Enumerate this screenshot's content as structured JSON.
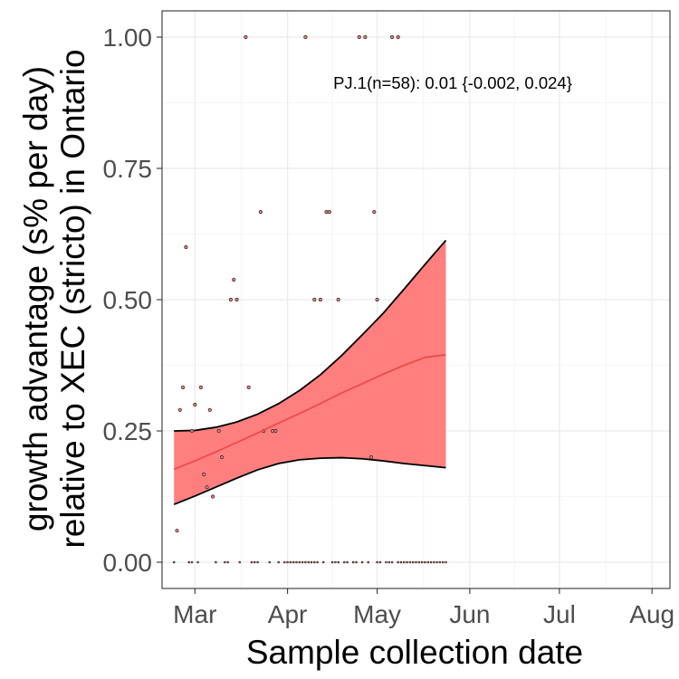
{
  "chart_data": {
    "type": "line",
    "xlabel": "Sample collection date",
    "ylabel_line1": "growth advantage (s% per day)",
    "ylabel_line2": "relative to XEC (stricto) in Ontario",
    "annotation": "PJ.1(n=58): 0.01 {-0.002, 0.024}",
    "x_ticks": [
      {
        "label": "Mar",
        "date": "2025-03-01"
      },
      {
        "label": "Apr",
        "date": "2025-04-01"
      },
      {
        "label": "May",
        "date": "2025-05-01"
      },
      {
        "label": "Jun",
        "date": "2025-06-01"
      },
      {
        "label": "Jul",
        "date": "2025-07-01"
      },
      {
        "label": "Aug",
        "date": "2025-08-01"
      }
    ],
    "y_ticks": [
      {
        "label": "0.00",
        "value": 0
      },
      {
        "label": "0.25",
        "value": 0.25
      },
      {
        "label": "0.50",
        "value": 0.5
      },
      {
        "label": "0.75",
        "value": 0.75
      },
      {
        "label": "1.00",
        "value": 1
      }
    ],
    "xlim": [
      "2025-02-18",
      "2025-08-07"
    ],
    "ylim": [
      -0.05,
      1.05
    ],
    "grid": true,
    "colors": {
      "fit_line": "#ee4a4a",
      "ribbon_fill": "#ff7f7f",
      "ribbon_edge": "#000000",
      "point_fill": "#e8837f",
      "point_edge": "#3a2a2a"
    },
    "fit": [
      {
        "x": "2025-02-22",
        "y": 0.177,
        "lo": 0.11,
        "hi": 0.25
      },
      {
        "x": "2025-03-01",
        "y": 0.193,
        "lo": 0.126,
        "hi": 0.251
      },
      {
        "x": "2025-03-08",
        "y": 0.21,
        "lo": 0.143,
        "hi": 0.257
      },
      {
        "x": "2025-03-15",
        "y": 0.228,
        "lo": 0.16,
        "hi": 0.267
      },
      {
        "x": "2025-03-22",
        "y": 0.246,
        "lo": 0.176,
        "hi": 0.282
      },
      {
        "x": "2025-03-29",
        "y": 0.265,
        "lo": 0.188,
        "hi": 0.302
      },
      {
        "x": "2025-04-05",
        "y": 0.283,
        "lo": 0.195,
        "hi": 0.327
      },
      {
        "x": "2025-04-12",
        "y": 0.302,
        "lo": 0.198,
        "hi": 0.357
      },
      {
        "x": "2025-04-19",
        "y": 0.322,
        "lo": 0.199,
        "hi": 0.393
      },
      {
        "x": "2025-04-26",
        "y": 0.34,
        "lo": 0.197,
        "hi": 0.433
      },
      {
        "x": "2025-05-03",
        "y": 0.358,
        "lo": 0.193,
        "hi": 0.474
      },
      {
        "x": "2025-05-10",
        "y": 0.375,
        "lo": 0.188,
        "hi": 0.52
      },
      {
        "x": "2025-05-17",
        "y": 0.39,
        "lo": 0.184,
        "hi": 0.567
      },
      {
        "x": "2025-05-24",
        "y": 0.395,
        "lo": 0.18,
        "hi": 0.613
      }
    ],
    "points": [
      {
        "x": "2025-02-23",
        "y": 0.06
      },
      {
        "x": "2025-02-24",
        "y": 0.29
      },
      {
        "x": "2025-02-25",
        "y": 0.333
      },
      {
        "x": "2025-02-26",
        "y": 0.6
      },
      {
        "x": "2025-02-28",
        "y": 0.25
      },
      {
        "x": "2025-03-01",
        "y": 0.3
      },
      {
        "x": "2025-03-03",
        "y": 0.333
      },
      {
        "x": "2025-03-04",
        "y": 0.167
      },
      {
        "x": "2025-03-05",
        "y": 0.143
      },
      {
        "x": "2025-03-06",
        "y": 0.29
      },
      {
        "x": "2025-03-07",
        "y": 0.125
      },
      {
        "x": "2025-03-09",
        "y": 0.25
      },
      {
        "x": "2025-03-10",
        "y": 0.2
      },
      {
        "x": "2025-03-13",
        "y": 0.5
      },
      {
        "x": "2025-03-14",
        "y": 0.538
      },
      {
        "x": "2025-03-15",
        "y": 0.5
      },
      {
        "x": "2025-03-18",
        "y": 1.0
      },
      {
        "x": "2025-03-19",
        "y": 0.333
      },
      {
        "x": "2025-03-23",
        "y": 0.667
      },
      {
        "x": "2025-03-24",
        "y": 0.25
      },
      {
        "x": "2025-03-27",
        "y": 0.25
      },
      {
        "x": "2025-03-28",
        "y": 0.25
      },
      {
        "x": "2025-04-07",
        "y": 1.0
      },
      {
        "x": "2025-04-10",
        "y": 0.5
      },
      {
        "x": "2025-04-12",
        "y": 0.5
      },
      {
        "x": "2025-04-14",
        "y": 0.667
      },
      {
        "x": "2025-04-15",
        "y": 0.667
      },
      {
        "x": "2025-04-18",
        "y": 0.5
      },
      {
        "x": "2025-04-25",
        "y": 1.0
      },
      {
        "x": "2025-04-27",
        "y": 1.0
      },
      {
        "x": "2025-04-29",
        "y": 0.2
      },
      {
        "x": "2025-04-30",
        "y": 0.667
      },
      {
        "x": "2025-05-01",
        "y": 0.5
      },
      {
        "x": "2025-05-06",
        "y": 1.0
      },
      {
        "x": "2025-05-08",
        "y": 1.0
      },
      {
        "x": "2025-02-22",
        "y": 0
      },
      {
        "x": "2025-02-27",
        "y": 0
      },
      {
        "x": "2025-02-28",
        "y": 0
      },
      {
        "x": "2025-03-02",
        "y": 0
      },
      {
        "x": "2025-03-08",
        "y": 0
      },
      {
        "x": "2025-03-11",
        "y": 0
      },
      {
        "x": "2025-03-12",
        "y": 0
      },
      {
        "x": "2025-03-16",
        "y": 0
      },
      {
        "x": "2025-03-20",
        "y": 0
      },
      {
        "x": "2025-03-21",
        "y": 0
      },
      {
        "x": "2025-03-22",
        "y": 0
      },
      {
        "x": "2025-03-26",
        "y": 0
      },
      {
        "x": "2025-03-29",
        "y": 0
      },
      {
        "x": "2025-03-31",
        "y": 0
      },
      {
        "x": "2025-04-01",
        "y": 0
      },
      {
        "x": "2025-04-02",
        "y": 0
      },
      {
        "x": "2025-04-03",
        "y": 0
      },
      {
        "x": "2025-04-04",
        "y": 0
      },
      {
        "x": "2025-04-05",
        "y": 0
      },
      {
        "x": "2025-04-06",
        "y": 0
      },
      {
        "x": "2025-04-07",
        "y": 0
      },
      {
        "x": "2025-04-08",
        "y": 0
      },
      {
        "x": "2025-04-09",
        "y": 0
      },
      {
        "x": "2025-04-10",
        "y": 0
      },
      {
        "x": "2025-04-11",
        "y": 0
      },
      {
        "x": "2025-04-13",
        "y": 0
      },
      {
        "x": "2025-04-16",
        "y": 0
      },
      {
        "x": "2025-04-17",
        "y": 0
      },
      {
        "x": "2025-04-18",
        "y": 0
      },
      {
        "x": "2025-04-20",
        "y": 0
      },
      {
        "x": "2025-04-21",
        "y": 0
      },
      {
        "x": "2025-04-23",
        "y": 0
      },
      {
        "x": "2025-04-24",
        "y": 0
      },
      {
        "x": "2025-04-26",
        "y": 0
      },
      {
        "x": "2025-04-28",
        "y": 0
      },
      {
        "x": "2025-05-01",
        "y": 0
      },
      {
        "x": "2025-05-02",
        "y": 0
      },
      {
        "x": "2025-05-04",
        "y": 0
      },
      {
        "x": "2025-05-05",
        "y": 0
      },
      {
        "x": "2025-05-06",
        "y": 0
      },
      {
        "x": "2025-05-08",
        "y": 0
      },
      {
        "x": "2025-05-09",
        "y": 0
      },
      {
        "x": "2025-05-10",
        "y": 0
      },
      {
        "x": "2025-05-11",
        "y": 0
      },
      {
        "x": "2025-05-12",
        "y": 0
      },
      {
        "x": "2025-05-13",
        "y": 0
      },
      {
        "x": "2025-05-14",
        "y": 0
      },
      {
        "x": "2025-05-15",
        "y": 0
      },
      {
        "x": "2025-05-16",
        "y": 0
      },
      {
        "x": "2025-05-17",
        "y": 0
      },
      {
        "x": "2025-05-18",
        "y": 0
      },
      {
        "x": "2025-05-19",
        "y": 0
      },
      {
        "x": "2025-05-20",
        "y": 0
      },
      {
        "x": "2025-05-21",
        "y": 0
      },
      {
        "x": "2025-05-22",
        "y": 0
      },
      {
        "x": "2025-05-23",
        "y": 0
      },
      {
        "x": "2025-05-24",
        "y": 0
      }
    ]
  }
}
